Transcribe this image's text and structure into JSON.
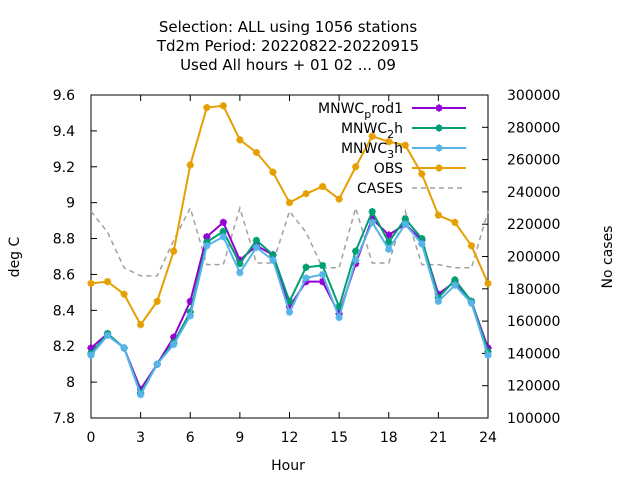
{
  "chart_data": {
    "type": "line",
    "title_lines": [
      "Selection: ALL using  1056 stations",
      "Td2m   Period: 20220822-20220915",
      "Used  All hours  + 01 02 ... 09"
    ],
    "xlabel": "Hour",
    "ylabel": "deg C",
    "y2label": "No cases",
    "xlim": [
      0,
      24
    ],
    "ylim": [
      7.8,
      9.6
    ],
    "y2lim": [
      100000,
      300000
    ],
    "xticks": [
      0,
      3,
      6,
      9,
      12,
      15,
      18,
      21,
      24
    ],
    "yticks": [
      7.8,
      8,
      8.2,
      8.4,
      8.6,
      8.8,
      9,
      9.2,
      9.4,
      9.6
    ],
    "ytick_labels": [
      "7.8",
      "8",
      "8.2",
      "8.4",
      "8.6",
      "8.8",
      "9",
      "9.2",
      "9.4",
      "9.6"
    ],
    "y2ticks": [
      100000,
      120000,
      140000,
      160000,
      180000,
      200000,
      220000,
      240000,
      260000,
      280000,
      300000
    ],
    "y2tick_labels": [
      "100000",
      "120000",
      "140000",
      "160000",
      "180000",
      "200000",
      "220000",
      "240000",
      "260000",
      "280000",
      "300000"
    ],
    "legend_position": "top-right",
    "x": [
      0,
      1,
      2,
      3,
      4,
      5,
      6,
      7,
      8,
      9,
      10,
      11,
      12,
      13,
      14,
      15,
      16,
      17,
      18,
      19,
      20,
      21,
      22,
      23,
      24
    ],
    "series": [
      {
        "name": "MNWC_prod1",
        "label_main": "MNWC",
        "label_sub": "p",
        "label_rest": "rod1",
        "color": "#9400d3",
        "axis": "y1",
        "style": "line-points",
        "values": [
          8.19,
          8.27,
          8.19,
          7.96,
          8.1,
          8.25,
          8.45,
          8.81,
          8.89,
          8.68,
          8.76,
          8.71,
          8.42,
          8.56,
          8.56,
          8.38,
          8.66,
          8.91,
          8.82,
          8.88,
          8.79,
          8.49,
          8.56,
          8.45,
          8.19
        ]
      },
      {
        "name": "MNWC_2h",
        "label_main": "MNWC",
        "label_sub": "2",
        "label_rest": "h",
        "color": "#009e73",
        "axis": "y1",
        "style": "line-points",
        "values": [
          8.16,
          8.27,
          8.19,
          7.94,
          8.1,
          8.22,
          8.39,
          8.78,
          8.84,
          8.66,
          8.79,
          8.71,
          8.45,
          8.64,
          8.65,
          8.42,
          8.73,
          8.95,
          8.78,
          8.91,
          8.8,
          8.47,
          8.57,
          8.45,
          8.17
        ]
      },
      {
        "name": "MNWC_3h",
        "label_main": "MNWC",
        "label_sub": "3",
        "label_rest": "h",
        "color": "#56b4e9",
        "axis": "y1",
        "style": "line-points",
        "values": [
          8.15,
          8.26,
          8.19,
          7.93,
          8.1,
          8.21,
          8.37,
          8.76,
          8.81,
          8.61,
          8.75,
          8.68,
          8.39,
          8.58,
          8.6,
          8.36,
          8.68,
          8.89,
          8.74,
          8.88,
          8.77,
          8.45,
          8.54,
          8.44,
          8.15
        ]
      },
      {
        "name": "OBS",
        "label_main": "OBS",
        "color": "#e69f00",
        "axis": "y1",
        "style": "line-points",
        "values": [
          8.55,
          8.56,
          8.49,
          8.32,
          8.45,
          8.73,
          9.21,
          9.53,
          9.54,
          9.35,
          9.28,
          9.17,
          9.0,
          9.05,
          9.09,
          9.02,
          9.2,
          9.37,
          9.34,
          9.32,
          9.16,
          8.93,
          8.89,
          8.76,
          8.55
        ]
      },
      {
        "name": "CASES",
        "label_main": "CASES",
        "color": "#a0a0a0",
        "axis": "y2",
        "style": "dashed",
        "values": [
          228000,
          215000,
          193000,
          188000,
          188000,
          210000,
          230000,
          195000,
          195000,
          230000,
          196000,
          196000,
          228000,
          215000,
          193000,
          193000,
          230000,
          196000,
          196000,
          228000,
          195000,
          195000,
          193000,
          193000,
          228000
        ]
      }
    ]
  }
}
